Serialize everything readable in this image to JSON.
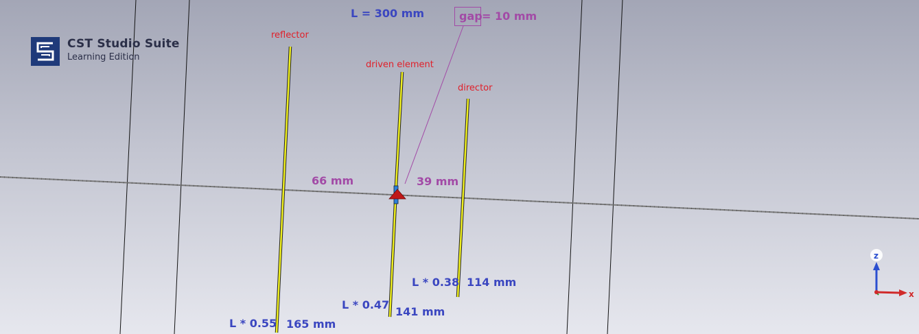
{
  "logo": {
    "title": "CST Studio Suite",
    "subtitle": "Learning Edition",
    "icon": "cst-logo-icon",
    "color": "#1f3a7a"
  },
  "labels": {
    "length": "L = 300 mm",
    "gap_word": "gap",
    "gap_value": "= 10 mm",
    "reflector": "reflector",
    "driven": "driven element",
    "director": "director",
    "spacing_reflector": "66 mm",
    "spacing_director": "39 mm",
    "reflector_factor": "L * 0.55",
    "reflector_length": "165 mm",
    "driven_factor": "L * 0.47",
    "driven_length": "141 mm",
    "director_factor": "L * 0.38",
    "director_length": "114 mm"
  },
  "axes": {
    "z_label": "z",
    "x_label": "x",
    "z_color": "#2b4fd0",
    "x_color": "#d02a2a"
  },
  "colors": {
    "element": "#f0f020",
    "label_red": "#e0202a",
    "label_blue": "#3a46c0",
    "label_purple": "#a24aa6",
    "port": "#c01818",
    "feed": "#2d7fd8"
  }
}
